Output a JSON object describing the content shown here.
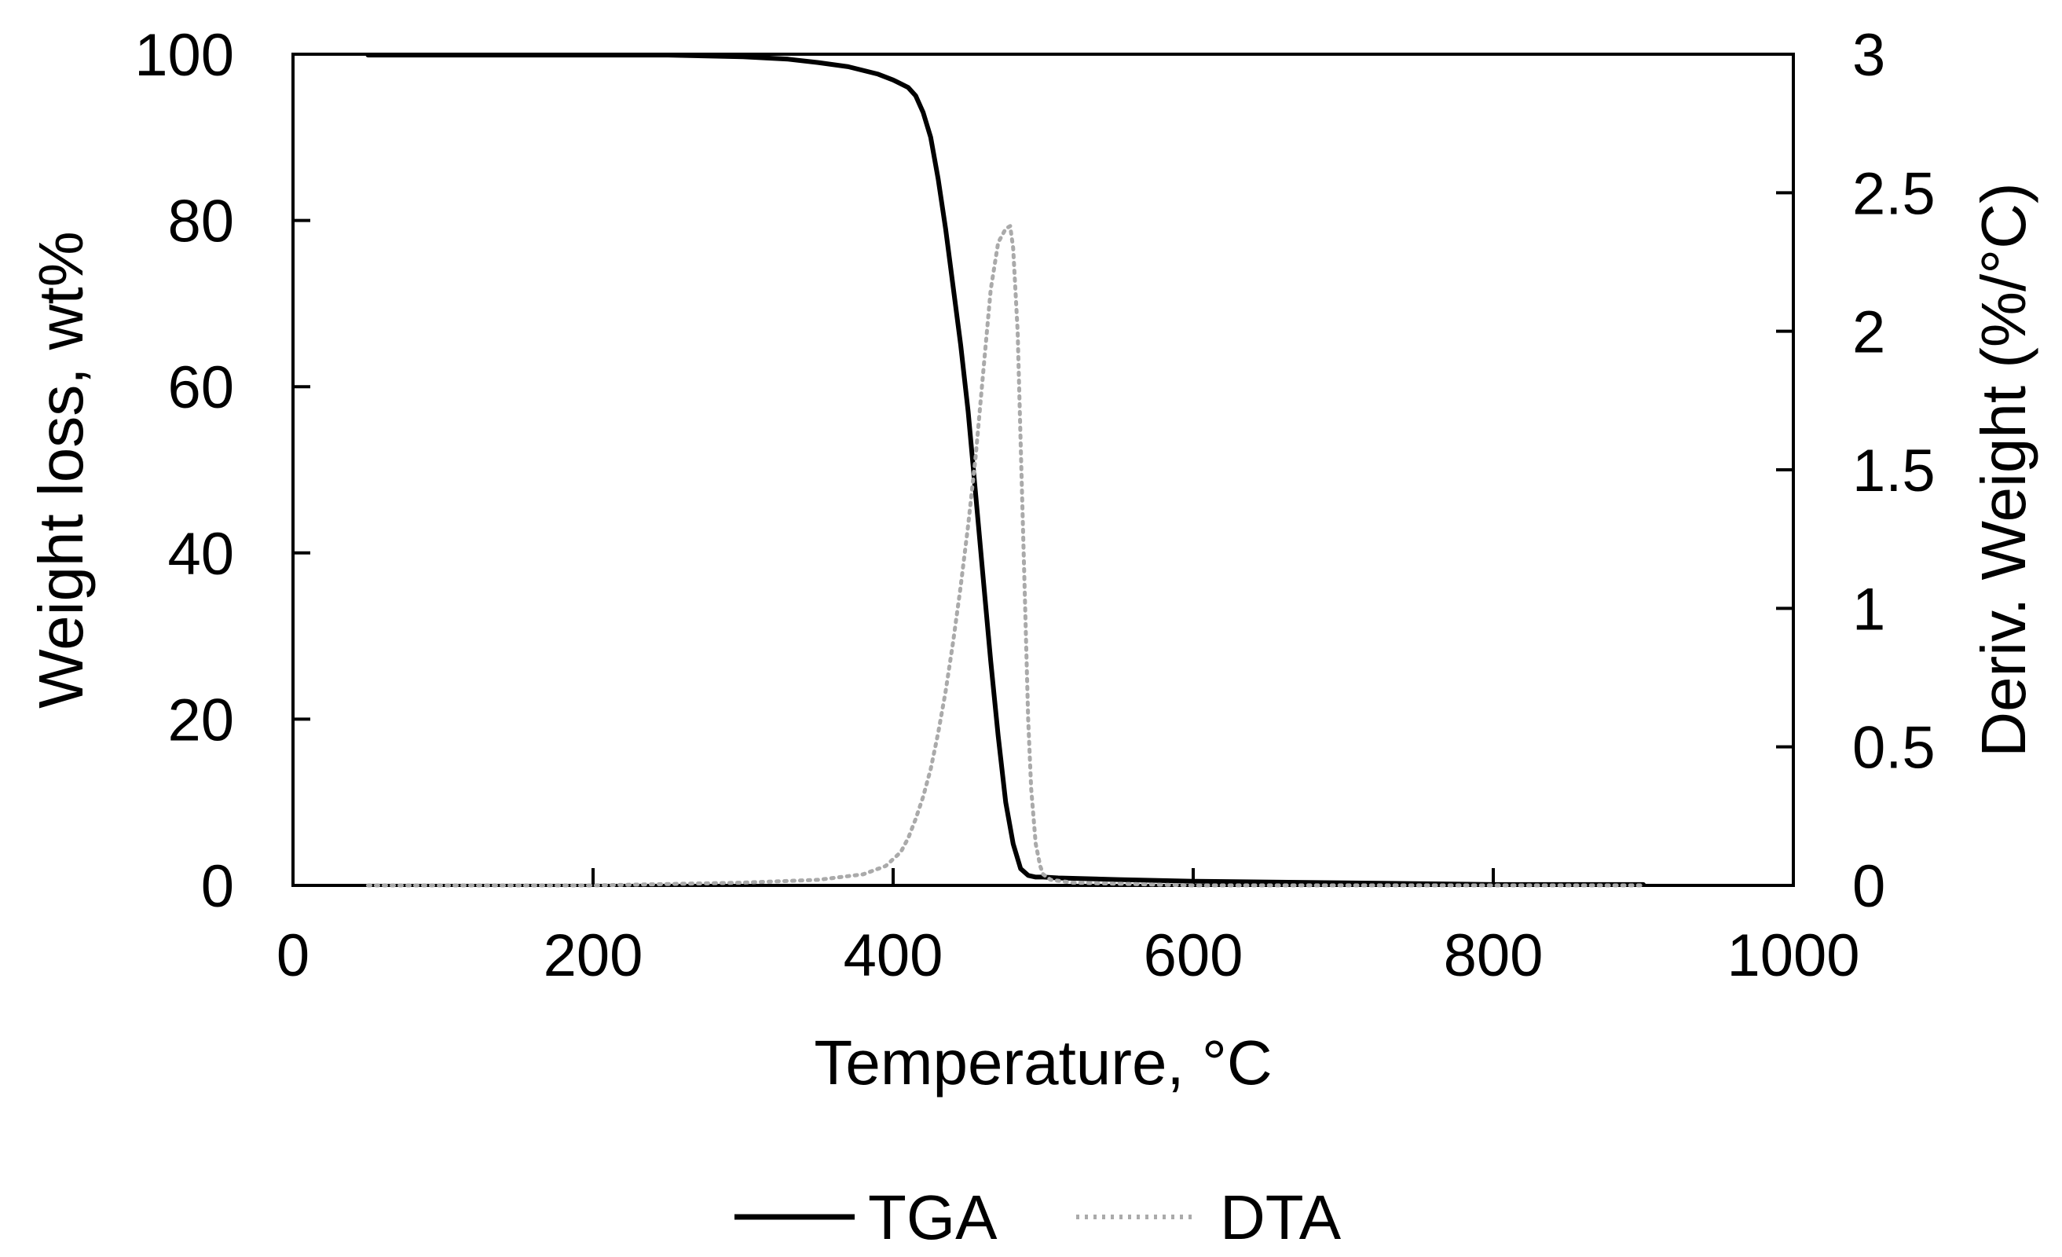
{
  "chart_data": {
    "type": "line",
    "xlabel": "Temperature, °C",
    "ylabel_left": "Weight loss, wt%",
    "ylabel_right": "Deriv. Weight (%/°C)",
    "xlim": [
      0,
      1000
    ],
    "ylim_left": [
      0,
      100
    ],
    "ylim_right": [
      0,
      3
    ],
    "x_ticks": [
      "0",
      "200",
      "400",
      "600",
      "800",
      "1000"
    ],
    "y_left_ticks": [
      "0",
      "20",
      "40",
      "60",
      "80",
      "100"
    ],
    "y_right_ticks": [
      "0",
      "0.5",
      "1",
      "1.5",
      "2",
      "2.5",
      "3"
    ],
    "grid": false,
    "legend_position": "bottom",
    "series": [
      {
        "name": "TGA",
        "axis": "left",
        "color": "#000000",
        "style": "solid",
        "x": [
          50,
          100,
          200,
          250,
          300,
          330,
          350,
          370,
          390,
          400,
          410,
          415,
          420,
          425,
          430,
          435,
          440,
          445,
          450,
          455,
          460,
          465,
          470,
          475,
          480,
          485,
          490,
          495,
          500,
          510,
          550,
          600,
          700,
          800,
          900
        ],
        "y": [
          99.9,
          99.9,
          99.9,
          99.9,
          99.7,
          99.4,
          99.0,
          98.5,
          97.6,
          96.9,
          96.0,
          95.0,
          93.0,
          90.0,
          85.0,
          79.0,
          72.0,
          65.0,
          57.0,
          47.0,
          37.0,
          27.0,
          18.0,
          10.0,
          5.0,
          2.0,
          1.2,
          1.0,
          1.0,
          0.9,
          0.7,
          0.5,
          0.3,
          0.1,
          0.1
        ]
      },
      {
        "name": "DTA",
        "axis": "right",
        "color": "#aaaaaa",
        "style": "dotted",
        "x": [
          50,
          200,
          300,
          350,
          380,
          395,
          405,
          410,
          415,
          420,
          425,
          430,
          435,
          440,
          445,
          450,
          455,
          460,
          465,
          470,
          475,
          478,
          480,
          483,
          485,
          488,
          490,
          492,
          495,
          498,
          500,
          505,
          520,
          600,
          800,
          900
        ],
        "y": [
          0.0,
          0.0,
          0.01,
          0.02,
          0.04,
          0.07,
          0.12,
          0.17,
          0.24,
          0.32,
          0.42,
          0.55,
          0.7,
          0.88,
          1.08,
          1.3,
          1.55,
          1.85,
          2.15,
          2.32,
          2.37,
          2.38,
          2.3,
          2.0,
          1.6,
          1.0,
          0.6,
          0.35,
          0.15,
          0.07,
          0.04,
          0.02,
          0.01,
          0.0,
          0.0,
          0.0
        ]
      }
    ]
  }
}
